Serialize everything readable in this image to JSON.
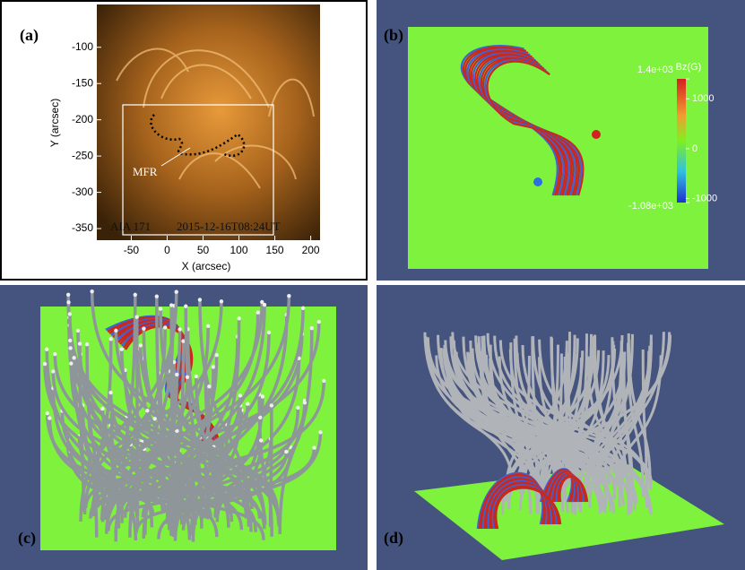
{
  "panel_a": {
    "label": "(a)",
    "x_label": "X (arcsec)",
    "y_label": "Y (arcsec)",
    "xlim": [
      -98,
      213
    ],
    "ylim": [
      -366,
      -41
    ],
    "xticks": [
      -50,
      0,
      50,
      100,
      150,
      200
    ],
    "yticks": [
      -100,
      -150,
      -200,
      -250,
      -300,
      -350
    ],
    "annotations": {
      "mfr": "MFR",
      "instrument": "AIA 171",
      "time": "2015-12-16T08:24UT"
    }
  },
  "panel_b": {
    "label": "(b)",
    "colorbar": {
      "title": "Bz(G)",
      "lim": [
        -1080,
        1400
      ],
      "ticks": [
        {
          "value": 1400,
          "label": "1.4e+03"
        },
        1000,
        0,
        -1000,
        {
          "value": -1080,
          "label": "-1.08e+03"
        }
      ]
    }
  },
  "panel_c": {
    "label": "(c)"
  },
  "panel_d": {
    "label": "(d)"
  }
}
